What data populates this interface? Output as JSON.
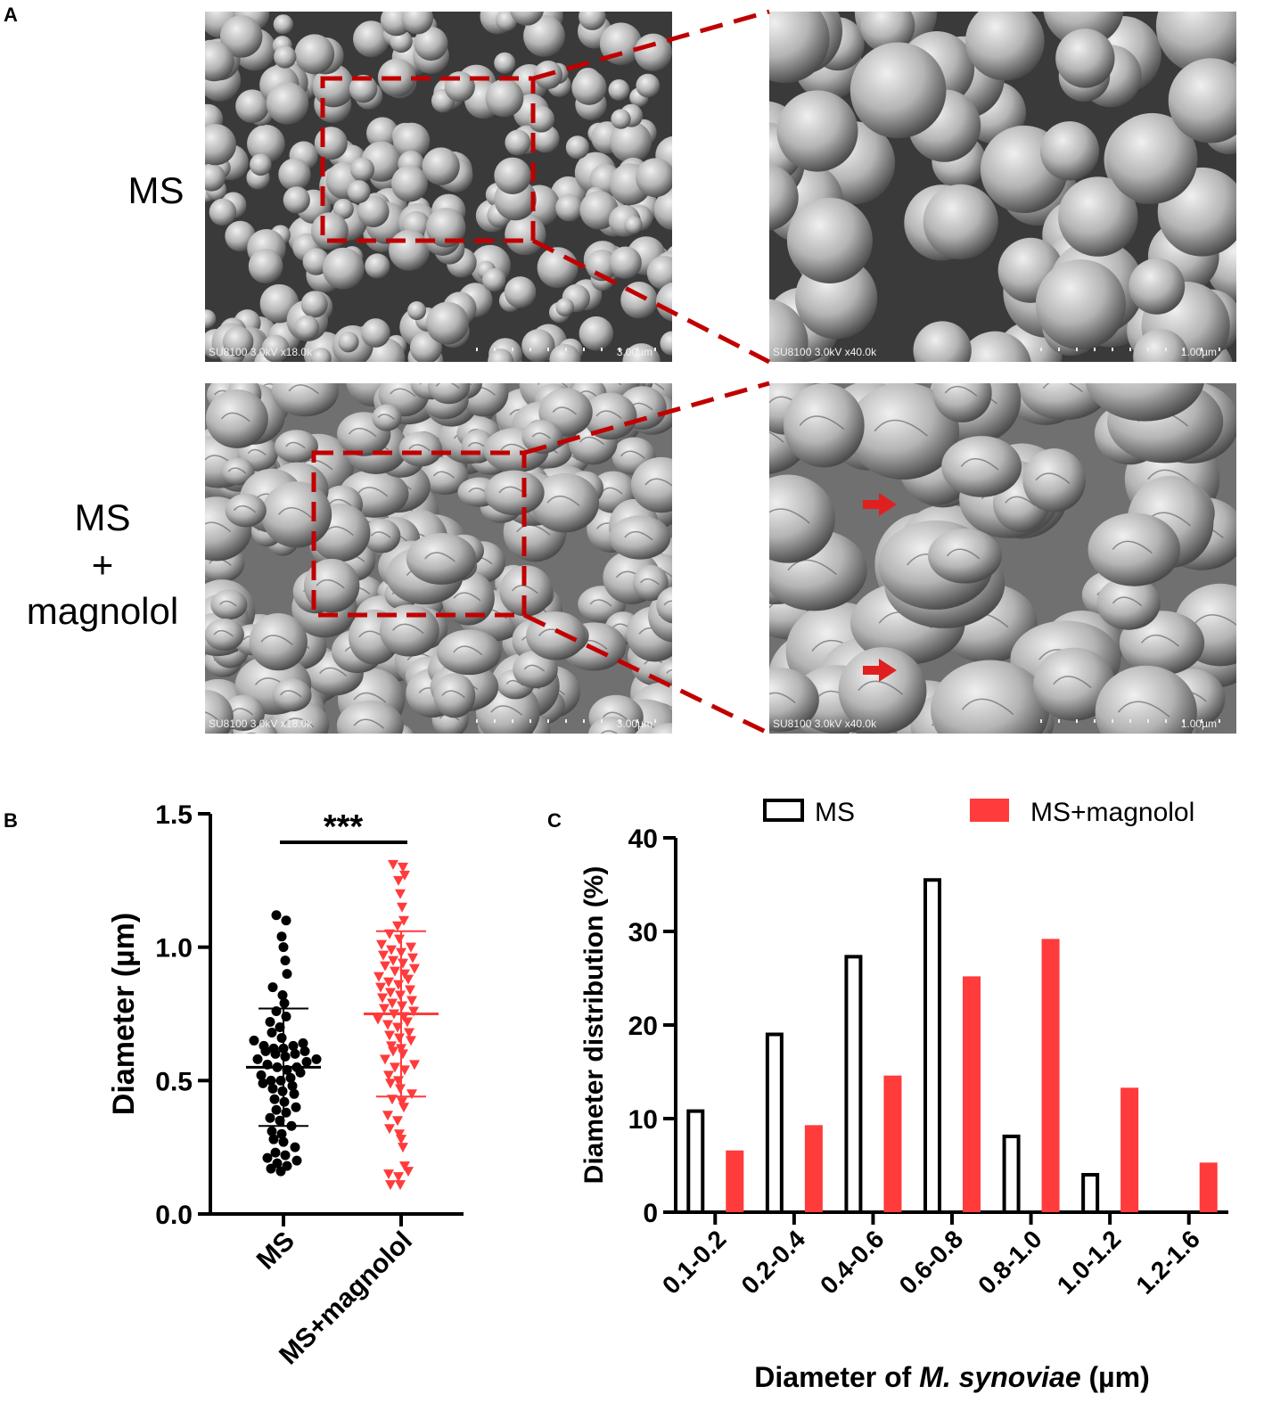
{
  "panel_a": {
    "letter": "A",
    "rows": [
      {
        "label_lines": [
          "MS"
        ],
        "images": [
          {
            "caption": "SU8100 3.0kV x18.0k",
            "scale": "3.00µm"
          },
          {
            "caption": "SU8100 3.0kV x40.0k",
            "scale": "1.00µm"
          }
        ]
      },
      {
        "label_lines": [
          "MS",
          "+",
          "magnolol"
        ],
        "images": [
          {
            "caption": "SU8100 3.0kV x18.0k",
            "scale": "3.00µm"
          },
          {
            "caption": "SU8100 3.0kV x40.0k",
            "scale": "1.00µm"
          }
        ]
      }
    ],
    "highlight_color": "#c00000",
    "arrow_color": "#e02020"
  },
  "chart_data": [
    {
      "panel": "B",
      "type": "scatter",
      "ylabel": "Diameter (µm)",
      "ylim": [
        0.0,
        1.5
      ],
      "yticks": [
        "0.0",
        "0.5",
        "1.0",
        "1.5"
      ],
      "categories": [
        "MS",
        "MS+magnolol"
      ],
      "significance": "***",
      "series": [
        {
          "name": "MS",
          "color": "#000000",
          "marker": "circle",
          "mean": 0.55,
          "sd_low": 0.33,
          "sd_high": 0.77,
          "values": [
            0.16,
            0.17,
            0.18,
            0.19,
            0.2,
            0.21,
            0.22,
            0.23,
            0.25,
            0.27,
            0.28,
            0.3,
            0.31,
            0.33,
            0.35,
            0.36,
            0.38,
            0.39,
            0.4,
            0.42,
            0.43,
            0.45,
            0.46,
            0.47,
            0.48,
            0.49,
            0.5,
            0.5,
            0.51,
            0.52,
            0.53,
            0.54,
            0.55,
            0.55,
            0.56,
            0.57,
            0.58,
            0.58,
            0.59,
            0.6,
            0.6,
            0.61,
            0.61,
            0.62,
            0.62,
            0.63,
            0.63,
            0.64,
            0.65,
            0.66,
            0.68,
            0.7,
            0.72,
            0.74,
            0.76,
            0.79,
            0.82,
            0.85,
            0.9,
            0.95,
            1.0,
            1.04,
            1.1,
            1.12
          ]
        },
        {
          "name": "MS+magnolol",
          "color": "#ff3b3b",
          "marker": "triangle-down",
          "mean": 0.75,
          "sd_low": 0.44,
          "sd_high": 1.06,
          "values": [
            0.11,
            0.11,
            0.14,
            0.15,
            0.16,
            0.18,
            0.25,
            0.28,
            0.3,
            0.32,
            0.35,
            0.37,
            0.4,
            0.42,
            0.43,
            0.45,
            0.47,
            0.49,
            0.5,
            0.52,
            0.54,
            0.55,
            0.56,
            0.58,
            0.6,
            0.61,
            0.62,
            0.63,
            0.65,
            0.66,
            0.67,
            0.68,
            0.7,
            0.71,
            0.72,
            0.73,
            0.74,
            0.75,
            0.76,
            0.77,
            0.78,
            0.79,
            0.8,
            0.81,
            0.82,
            0.83,
            0.84,
            0.85,
            0.86,
            0.87,
            0.88,
            0.89,
            0.9,
            0.91,
            0.92,
            0.93,
            0.94,
            0.95,
            0.96,
            0.97,
            0.98,
            0.99,
            1.0,
            1.01,
            1.03,
            1.05,
            1.08,
            1.1,
            1.15,
            1.2,
            1.25,
            1.27,
            1.3,
            1.31
          ]
        }
      ]
    },
    {
      "panel": "C",
      "type": "bar",
      "xlabel_prefix": "Diameter of ",
      "xlabel_italic": "M. synoviae",
      "xlabel_suffix": " (µm)",
      "ylabel": "Diameter distribution (%)",
      "ylim": [
        0,
        40
      ],
      "yticks": [
        "0",
        "10",
        "20",
        "30",
        "40"
      ],
      "categories": [
        "0.1-0.2",
        "0.2-0.4",
        "0.4-0.6",
        "0.6-0.8",
        "0.8-1.0",
        "1.0-1.2",
        "1.2-1.6"
      ],
      "legend_position": "top",
      "series": [
        {
          "name": "MS",
          "style": "outline",
          "color": "#000000",
          "values": [
            10.8,
            19.0,
            27.3,
            35.5,
            8.1,
            4.0,
            0
          ]
        },
        {
          "name": "MS+magnolol",
          "style": "filled",
          "color": "#ff3b3b",
          "values": [
            6.6,
            9.3,
            14.6,
            25.2,
            29.2,
            13.3,
            5.3
          ]
        }
      ]
    }
  ]
}
